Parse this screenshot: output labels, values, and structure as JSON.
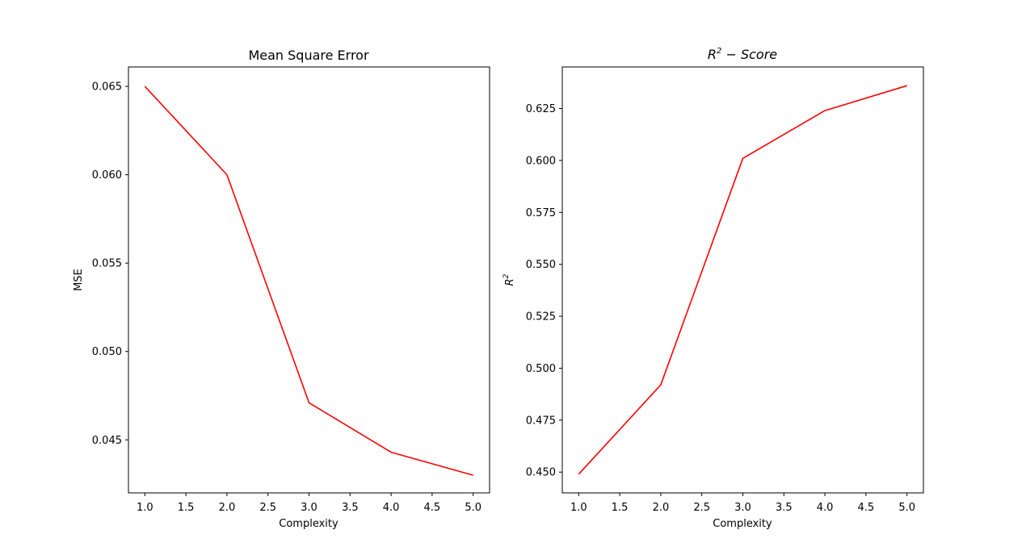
{
  "chart_data": [
    {
      "type": "line",
      "title": "Mean Square Error",
      "xlabel": "Complexity",
      "ylabel": "MSE",
      "x": [
        1.0,
        2.0,
        3.0,
        4.0,
        5.0
      ],
      "series": [
        {
          "values": [
            0.065,
            0.06,
            0.0471,
            0.0443,
            0.043
          ],
          "color": "#ff0000"
        }
      ],
      "xlim": [
        0.8,
        5.2
      ],
      "ylim": [
        0.042,
        0.0661
      ],
      "xticks": [
        "1.0",
        "1.5",
        "2.0",
        "2.5",
        "3.0",
        "3.5",
        "4.0",
        "4.5",
        "5.0"
      ],
      "yticks": [
        "0.045",
        "0.050",
        "0.055",
        "0.060",
        "0.065"
      ],
      "grid": false
    },
    {
      "type": "line",
      "title_parts": {
        "base": "R",
        "sup": "2",
        "rest": " − Score"
      },
      "xlabel": "Complexity",
      "ylabel_parts": {
        "base": "R",
        "sup": "2"
      },
      "x": [
        1.0,
        2.0,
        3.0,
        4.0,
        5.0
      ],
      "series": [
        {
          "values": [
            0.449,
            0.492,
            0.601,
            0.624,
            0.636
          ],
          "color": "#ff0000"
        }
      ],
      "xlim": [
        0.8,
        5.2
      ],
      "ylim": [
        0.44,
        0.645
      ],
      "xticks": [
        "1.0",
        "1.5",
        "2.0",
        "2.5",
        "3.0",
        "3.5",
        "4.0",
        "4.5",
        "5.0"
      ],
      "yticks": [
        "0.450",
        "0.475",
        "0.500",
        "0.525",
        "0.550",
        "0.575",
        "0.600",
        "0.625"
      ],
      "grid": false
    }
  ]
}
